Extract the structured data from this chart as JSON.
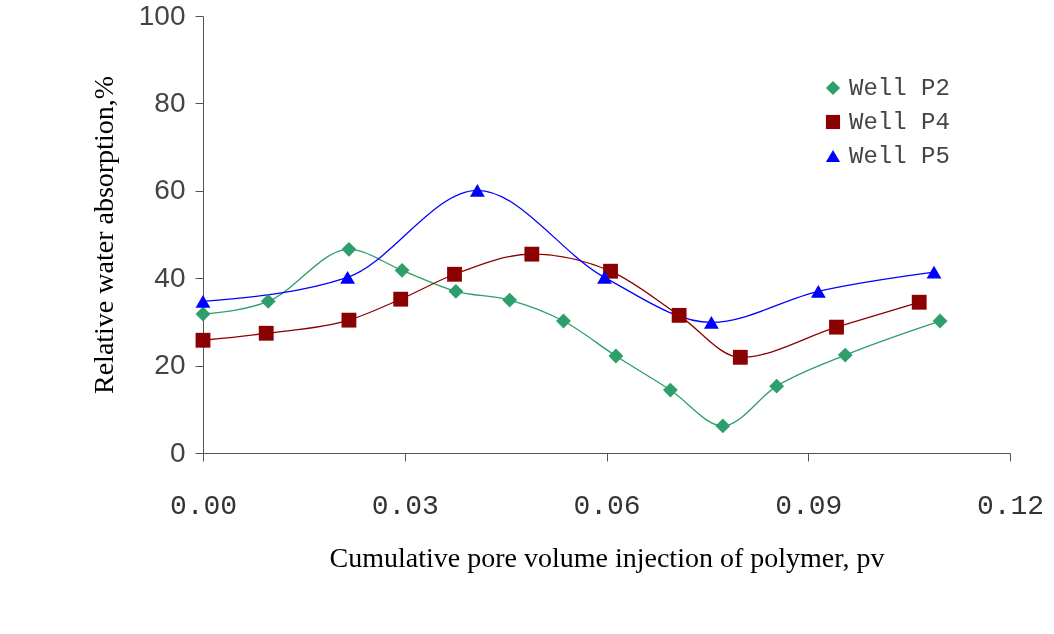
{
  "chart_data": {
    "type": "line",
    "xlabel": "Cumulative pore volume injection of polymer, pv",
    "ylabel": "Relative water absorption,%",
    "xlim": [
      0,
      0.12
    ],
    "xticks": [
      {
        "value": 0,
        "label": "0.00"
      },
      {
        "value": 0.03,
        "label": "0.03"
      },
      {
        "value": 0.06,
        "label": "0.06"
      },
      {
        "value": 0.09,
        "label": "0.09"
      },
      {
        "value": 0.12,
        "label": "0.12"
      }
    ],
    "ylim": [
      0,
      100
    ],
    "yticks": [
      0,
      20,
      40,
      60,
      80,
      100
    ],
    "grid": false,
    "legend": "top right",
    "series": [
      {
        "name": "Well P2",
        "color": "#2e9e6a",
        "marker": "diamond",
        "x": [
          0,
          0.0097,
          0.0217,
          0.0296,
          0.0376,
          0.0456,
          0.0536,
          0.0614,
          0.0695,
          0.0773,
          0.0853,
          0.0955,
          0.1096
        ],
        "values": [
          31.8,
          34.7,
          46.6,
          41.8,
          37.0,
          35.0,
          30.2,
          22.2,
          14.4,
          6.2,
          15.3,
          22.4,
          30.2
        ]
      },
      {
        "name": "Well P4",
        "color": "#8b0000",
        "marker": "square",
        "x": [
          0,
          0.0094,
          0.0217,
          0.0294,
          0.0374,
          0.0489,
          0.0606,
          0.0708,
          0.0799,
          0.0942,
          0.1065
        ],
        "values": [
          25.8,
          27.4,
          30.4,
          35.2,
          40.9,
          45.5,
          41.6,
          31.5,
          21.9,
          28.8,
          34.5
        ]
      },
      {
        "name": "Well P5",
        "color": "#0000ff",
        "marker": "triangle",
        "x": [
          0,
          0.0215,
          0.0408,
          0.0597,
          0.0756,
          0.0915,
          0.1087
        ],
        "values": [
          34.7,
          40.2,
          60.1,
          40.2,
          29.9,
          37.0,
          41.4
        ]
      }
    ]
  }
}
